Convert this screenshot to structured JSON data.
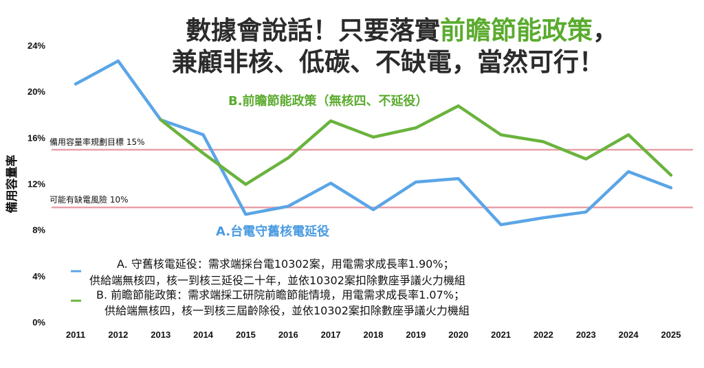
{
  "chart_data": {
    "type": "line",
    "title_parts": [
      "數據會說話！只要落實",
      "前瞻節能政策",
      "，"
    ],
    "title_line2": "兼顧非核、低碳、不缺電，當然可行！",
    "ylabel": "備用容量率",
    "xlabel": "",
    "categories": [
      "2011",
      "2012",
      "2013",
      "2014",
      "2015",
      "2016",
      "2017",
      "2018",
      "2019",
      "2020",
      "2021",
      "2022",
      "2023",
      "2024",
      "2025"
    ],
    "ylim": [
      0,
      24
    ],
    "yticks": [
      0,
      4,
      8,
      12,
      16,
      20,
      24
    ],
    "ytick_labels": [
      "0%",
      "4%",
      "8%",
      "12%",
      "16%",
      "20%",
      "24%"
    ],
    "grid": false,
    "series": [
      {
        "name": "A.台電守舊核電延役",
        "color": "#5aa5e6",
        "values": [
          20.7,
          22.7,
          17.6,
          16.3,
          9.4,
          10.1,
          12.1,
          9.8,
          12.2,
          12.5,
          8.5,
          9.1,
          9.6,
          13.1,
          11.7
        ],
        "legend": [
          "A. 守舊核電延役：需求端採台電10302案，用電需求成長率1.90%；",
          "供給端無核四，核一到核三延役二十年，並依10302案扣除數座爭議火力機組"
        ]
      },
      {
        "name": "B.前瞻節能政策（無核四、不延役）",
        "color": "#6ab33d",
        "values": [
          null,
          null,
          17.6,
          14.7,
          12.0,
          14.3,
          17.5,
          16.1,
          16.9,
          18.8,
          16.3,
          15.7,
          14.2,
          16.3,
          12.8
        ],
        "legend": [
          "B. 前瞻節能政策：需求端採工研院前瞻節能情境，用電需求成長率1.07%；",
          "供給端無核四，核一到核三屆齡除役，並依10302案扣除數座爭議火力機組"
        ]
      }
    ],
    "reference_lines": [
      {
        "value": 15,
        "label": "備用容量率規劃目標 15%",
        "color": "#e8a0a8"
      },
      {
        "value": 10,
        "label": "可能有缺電風險 10%",
        "color": "#e8a0a8"
      }
    ]
  }
}
